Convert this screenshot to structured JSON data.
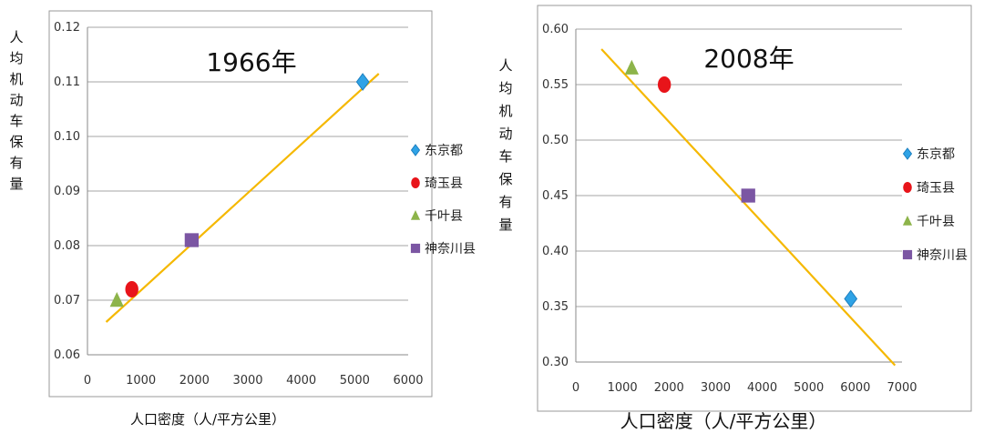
{
  "chart_data": [
    {
      "type": "scatter",
      "title": "1966年",
      "xlabel": "人口密度（人/平方公里）",
      "ylabel": "人均机动车保有量",
      "xlim": [
        0,
        6000
      ],
      "ylim": [
        0.06,
        0.12
      ],
      "xticks": [
        "0",
        "1000",
        "2000",
        "3000",
        "4000",
        "5000",
        "6000"
      ],
      "yticks": [
        "0.06",
        "0.07",
        "0.08",
        "0.09",
        "0.10",
        "0.11",
        "0.12"
      ],
      "grid": true,
      "legend_position": "right",
      "trendline": {
        "x": [
          350,
          5450
        ],
        "y": [
          0.066,
          0.1115
        ],
        "color": "#f5b800"
      },
      "series": [
        {
          "name": "东京都",
          "marker": "diamond",
          "color": "#2fa3e6",
          "x": [
            5150
          ],
          "y": [
            0.11
          ]
        },
        {
          "name": "琦玉县",
          "marker": "circle",
          "color": "#e8141a",
          "x": [
            830
          ],
          "y": [
            0.072
          ]
        },
        {
          "name": "千叶县",
          "marker": "triangle",
          "color": "#8db44a",
          "x": [
            550
          ],
          "y": [
            0.07
          ]
        },
        {
          "name": "神奈川县",
          "marker": "square",
          "color": "#7b56a3",
          "x": [
            1950
          ],
          "y": [
            0.081
          ]
        }
      ]
    },
    {
      "type": "scatter",
      "title": "2008年",
      "xlabel": "人口密度（人/平方公里）",
      "ylabel": "人均机动车保有量",
      "xlim": [
        0,
        7000
      ],
      "ylim": [
        0.3,
        0.6
      ],
      "xticks": [
        "0",
        "1000",
        "2000",
        "3000",
        "4000",
        "5000",
        "6000",
        "7000"
      ],
      "yticks": [
        "0.30",
        "0.35",
        "0.40",
        "0.45",
        "0.50",
        "0.55",
        "0.60"
      ],
      "grid": true,
      "legend_position": "right",
      "trendline": {
        "x": [
          550,
          6850
        ],
        "y": [
          0.582,
          0.297
        ],
        "color": "#f5b800"
      },
      "series": [
        {
          "name": "东京都",
          "marker": "diamond",
          "color": "#2fa3e6",
          "x": [
            5900
          ],
          "y": [
            0.357
          ]
        },
        {
          "name": "琦玉县",
          "marker": "circle",
          "color": "#e8141a",
          "x": [
            1900
          ],
          "y": [
            0.55
          ]
        },
        {
          "name": "千叶县",
          "marker": "triangle",
          "color": "#8db44a",
          "x": [
            1200
          ],
          "y": [
            0.565
          ]
        },
        {
          "name": "神奈川县",
          "marker": "square",
          "color": "#7b56a3",
          "x": [
            3700
          ],
          "y": [
            0.45
          ]
        }
      ]
    }
  ]
}
